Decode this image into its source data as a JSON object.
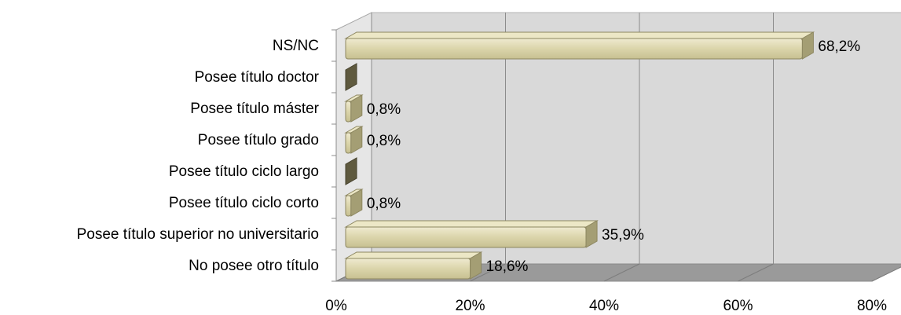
{
  "chart_data": {
    "type": "bar",
    "orientation": "horizontal",
    "style": "3d",
    "title": "",
    "xlabel": "",
    "ylabel": "",
    "categories": [
      "NS/NC",
      "Posee título doctor",
      "Posee título máster",
      "Posee título grado",
      "Posee título ciclo largo",
      "Posee título ciclo corto",
      "Posee título superior no universitario",
      "No posee otro título"
    ],
    "values": [
      68.2,
      0,
      0.8,
      0.8,
      0,
      0.8,
      35.9,
      18.6
    ],
    "data_labels": [
      "68,2%",
      "",
      "0,8%",
      "0,8%",
      "",
      "0,8%",
      "35,9%",
      "18,6%"
    ],
    "xlim": [
      0,
      80
    ],
    "xticks": [
      0,
      20,
      40,
      60,
      80
    ],
    "xtick_labels": [
      "0%",
      "20%",
      "40%",
      "60%",
      "80%"
    ],
    "grid": true,
    "legend": "none",
    "colors": {
      "bar_front": "#ddd7ae",
      "bar_top": "#ece7c6",
      "bar_side": "#a49e74",
      "bar_stroke": "#8d8760",
      "zero_bar": "#5f5a3f",
      "wall": "#d9d9d9",
      "floor": "#9a9a9a",
      "gridline": "#8c8c8c"
    }
  }
}
